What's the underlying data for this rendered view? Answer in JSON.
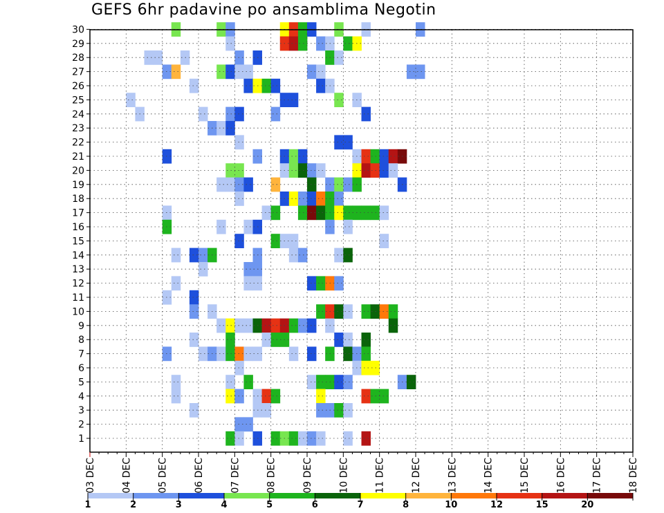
{
  "chart_data": {
    "type": "heatmap",
    "title": "GEFS 6hr padavine po ansamblima Negotin",
    "x_tick_labels": [
      "03 DEC",
      "04 DEC",
      "05 DEC",
      "06 DEC",
      "07 DEC",
      "08 DEC",
      "09 DEC",
      "10 DEC",
      "11 DEC",
      "12 DEC",
      "13 DEC",
      "14 DEC",
      "15 DEC",
      "16 DEC",
      "17 DEC",
      "18 DEC"
    ],
    "y_tick_labels": [
      "1",
      "2",
      "3",
      "4",
      "5",
      "6",
      "7",
      "8",
      "9",
      "10",
      "11",
      "12",
      "13",
      "14",
      "15",
      "16",
      "17",
      "18",
      "19",
      "20",
      "21",
      "22",
      "23",
      "24",
      "25",
      "26",
      "27",
      "28",
      "29",
      "30"
    ],
    "x_unit": "6-hour step from 03 DEC",
    "y_unit": "ensemble member",
    "grid": true,
    "colorbar": {
      "labels": [
        "1",
        "2",
        "3",
        "4",
        "5",
        "6",
        "7",
        "8",
        "10",
        "12",
        "15",
        "20"
      ],
      "colors": [
        "#b4c8f5",
        "#6e96f0",
        "#1e50dc",
        "#78e650",
        "#1eb41e",
        "#0a640a",
        "#ffff00",
        "#ffb43c",
        "#ff780a",
        "#e63214",
        "#b41414",
        "#780a0a"
      ]
    },
    "cells": [
      [
        30,
        9,
        4
      ],
      [
        30,
        14,
        4
      ],
      [
        30,
        15,
        2
      ],
      [
        30,
        21,
        7
      ],
      [
        30,
        22,
        10
      ],
      [
        30,
        23,
        5
      ],
      [
        30,
        24,
        3
      ],
      [
        30,
        27,
        4
      ],
      [
        30,
        30,
        1
      ],
      [
        30,
        36,
        2
      ],
      [
        29,
        15,
        1
      ],
      [
        29,
        21,
        10
      ],
      [
        29,
        22,
        11
      ],
      [
        29,
        23,
        5
      ],
      [
        29,
        25,
        2
      ],
      [
        29,
        26,
        1
      ],
      [
        29,
        28,
        5
      ],
      [
        29,
        29,
        7
      ],
      [
        28,
        6,
        1
      ],
      [
        28,
        7,
        1
      ],
      [
        28,
        10,
        1
      ],
      [
        28,
        16,
        2
      ],
      [
        28,
        18,
        3
      ],
      [
        28,
        26,
        5
      ],
      [
        28,
        27,
        1
      ],
      [
        27,
        8,
        2
      ],
      [
        27,
        9,
        8
      ],
      [
        27,
        14,
        4
      ],
      [
        27,
        15,
        3
      ],
      [
        27,
        16,
        1
      ],
      [
        27,
        17,
        1
      ],
      [
        27,
        24,
        2
      ],
      [
        27,
        25,
        1
      ],
      [
        27,
        35,
        2
      ],
      [
        27,
        36,
        2
      ],
      [
        26,
        11,
        1
      ],
      [
        26,
        17,
        3
      ],
      [
        26,
        18,
        7
      ],
      [
        26,
        19,
        5
      ],
      [
        26,
        20,
        3
      ],
      [
        26,
        25,
        3
      ],
      [
        26,
        26,
        1
      ],
      [
        25,
        4,
        1
      ],
      [
        25,
        21,
        3
      ],
      [
        25,
        22,
        3
      ],
      [
        25,
        27,
        4
      ],
      [
        25,
        29,
        1
      ],
      [
        24,
        5,
        1
      ],
      [
        24,
        12,
        1
      ],
      [
        24,
        15,
        2
      ],
      [
        24,
        16,
        3
      ],
      [
        24,
        20,
        2
      ],
      [
        24,
        30,
        3
      ],
      [
        23,
        13,
        2
      ],
      [
        23,
        14,
        1
      ],
      [
        23,
        15,
        3
      ],
      [
        22,
        16,
        1
      ],
      [
        22,
        27,
        3
      ],
      [
        22,
        28,
        3
      ],
      [
        21,
        8,
        3
      ],
      [
        21,
        18,
        2
      ],
      [
        21,
        21,
        3
      ],
      [
        21,
        22,
        4
      ],
      [
        21,
        23,
        3
      ],
      [
        21,
        29,
        1
      ],
      [
        21,
        30,
        10
      ],
      [
        21,
        31,
        5
      ],
      [
        21,
        32,
        3
      ],
      [
        21,
        33,
        11
      ],
      [
        21,
        34,
        12
      ],
      [
        20,
        15,
        4
      ],
      [
        20,
        16,
        4
      ],
      [
        20,
        21,
        1
      ],
      [
        20,
        22,
        4
      ],
      [
        20,
        23,
        6
      ],
      [
        20,
        24,
        2
      ],
      [
        20,
        25,
        1
      ],
      [
        20,
        29,
        7
      ],
      [
        20,
        30,
        11
      ],
      [
        20,
        31,
        10
      ],
      [
        20,
        32,
        3
      ],
      [
        20,
        33,
        1
      ],
      [
        19,
        14,
        1
      ],
      [
        19,
        15,
        1
      ],
      [
        19,
        16,
        2
      ],
      [
        19,
        17,
        3
      ],
      [
        19,
        20,
        8
      ],
      [
        19,
        24,
        6
      ],
      [
        19,
        26,
        2
      ],
      [
        19,
        27,
        4
      ],
      [
        19,
        28,
        2
      ],
      [
        19,
        29,
        5
      ],
      [
        19,
        34,
        3
      ],
      [
        18,
        16,
        1
      ],
      [
        18,
        21,
        3
      ],
      [
        18,
        22,
        7
      ],
      [
        18,
        23,
        2
      ],
      [
        18,
        24,
        3
      ],
      [
        18,
        25,
        9
      ],
      [
        18,
        26,
        5
      ],
      [
        18,
        27,
        2
      ],
      [
        17,
        8,
        1
      ],
      [
        17,
        19,
        1
      ],
      [
        17,
        20,
        5
      ],
      [
        17,
        23,
        5
      ],
      [
        17,
        24,
        12
      ],
      [
        17,
        25,
        6
      ],
      [
        17,
        26,
        5
      ],
      [
        17,
        27,
        7
      ],
      [
        17,
        28,
        5
      ],
      [
        17,
        29,
        5
      ],
      [
        17,
        30,
        5
      ],
      [
        17,
        31,
        5
      ],
      [
        17,
        32,
        1
      ],
      [
        16,
        8,
        5
      ],
      [
        16,
        14,
        1
      ],
      [
        16,
        17,
        1
      ],
      [
        16,
        18,
        3
      ],
      [
        16,
        26,
        2
      ],
      [
        16,
        28,
        1
      ],
      [
        15,
        16,
        3
      ],
      [
        15,
        20,
        5
      ],
      [
        15,
        21,
        1
      ],
      [
        15,
        22,
        1
      ],
      [
        15,
        32,
        1
      ],
      [
        14,
        9,
        1
      ],
      [
        14,
        11,
        3
      ],
      [
        14,
        12,
        2
      ],
      [
        14,
        13,
        5
      ],
      [
        14,
        18,
        2
      ],
      [
        14,
        22,
        1
      ],
      [
        14,
        23,
        2
      ],
      [
        14,
        27,
        1
      ],
      [
        14,
        28,
        6
      ],
      [
        13,
        12,
        1
      ],
      [
        13,
        17,
        2
      ],
      [
        13,
        18,
        2
      ],
      [
        12,
        9,
        1
      ],
      [
        12,
        17,
        1
      ],
      [
        12,
        18,
        1
      ],
      [
        12,
        24,
        3
      ],
      [
        12,
        25,
        5
      ],
      [
        12,
        26,
        9
      ],
      [
        12,
        27,
        2
      ],
      [
        11,
        8,
        1
      ],
      [
        11,
        11,
        3
      ],
      [
        10,
        11,
        2
      ],
      [
        10,
        13,
        1
      ],
      [
        10,
        25,
        5
      ],
      [
        10,
        26,
        10
      ],
      [
        10,
        27,
        6
      ],
      [
        10,
        28,
        1
      ],
      [
        10,
        30,
        5
      ],
      [
        10,
        31,
        6
      ],
      [
        10,
        32,
        9
      ],
      [
        10,
        33,
        5
      ],
      [
        9,
        14,
        1
      ],
      [
        9,
        15,
        7
      ],
      [
        9,
        16,
        1
      ],
      [
        9,
        17,
        1
      ],
      [
        9,
        18,
        6
      ],
      [
        9,
        19,
        11
      ],
      [
        9,
        20,
        10
      ],
      [
        9,
        21,
        11
      ],
      [
        9,
        22,
        5
      ],
      [
        9,
        23,
        2
      ],
      [
        9,
        24,
        3
      ],
      [
        9,
        26,
        1
      ],
      [
        9,
        33,
        6
      ],
      [
        8,
        11,
        1
      ],
      [
        8,
        15,
        5
      ],
      [
        8,
        19,
        1
      ],
      [
        8,
        20,
        5
      ],
      [
        8,
        21,
        5
      ],
      [
        8,
        27,
        3
      ],
      [
        8,
        28,
        1
      ],
      [
        8,
        30,
        6
      ],
      [
        7,
        8,
        2
      ],
      [
        7,
        12,
        1
      ],
      [
        7,
        13,
        2
      ],
      [
        7,
        14,
        1
      ],
      [
        7,
        15,
        5
      ],
      [
        7,
        16,
        9
      ],
      [
        7,
        17,
        1
      ],
      [
        7,
        18,
        1
      ],
      [
        7,
        22,
        1
      ],
      [
        7,
        24,
        3
      ],
      [
        7,
        26,
        5
      ],
      [
        7,
        28,
        6
      ],
      [
        7,
        29,
        2
      ],
      [
        7,
        30,
        5
      ],
      [
        6,
        16,
        1
      ],
      [
        6,
        29,
        1
      ],
      [
        6,
        30,
        7
      ],
      [
        6,
        31,
        7
      ],
      [
        5,
        9,
        1
      ],
      [
        5,
        15,
        1
      ],
      [
        5,
        17,
        5
      ],
      [
        5,
        24,
        1
      ],
      [
        5,
        25,
        5
      ],
      [
        5,
        26,
        5
      ],
      [
        5,
        27,
        3
      ],
      [
        5,
        28,
        2
      ],
      [
        5,
        34,
        2
      ],
      [
        5,
        35,
        6
      ],
      [
        4,
        9,
        1
      ],
      [
        4,
        15,
        7
      ],
      [
        4,
        16,
        2
      ],
      [
        4,
        18,
        1
      ],
      [
        4,
        19,
        10
      ],
      [
        4,
        20,
        5
      ],
      [
        4,
        25,
        7
      ],
      [
        4,
        30,
        10
      ],
      [
        4,
        31,
        5
      ],
      [
        4,
        32,
        5
      ],
      [
        3,
        11,
        1
      ],
      [
        3,
        18,
        1
      ],
      [
        3,
        19,
        1
      ],
      [
        3,
        25,
        2
      ],
      [
        3,
        26,
        2
      ],
      [
        3,
        27,
        5
      ],
      [
        3,
        28,
        1
      ],
      [
        2,
        16,
        2
      ],
      [
        2,
        17,
        2
      ],
      [
        1,
        15,
        5
      ],
      [
        1,
        16,
        1
      ],
      [
        1,
        18,
        3
      ],
      [
        1,
        20,
        5
      ],
      [
        1,
        21,
        4
      ],
      [
        1,
        22,
        5
      ],
      [
        1,
        23,
        1
      ],
      [
        1,
        24,
        2
      ],
      [
        1,
        25,
        1
      ],
      [
        1,
        28,
        1
      ],
      [
        1,
        30,
        11
      ]
    ]
  }
}
